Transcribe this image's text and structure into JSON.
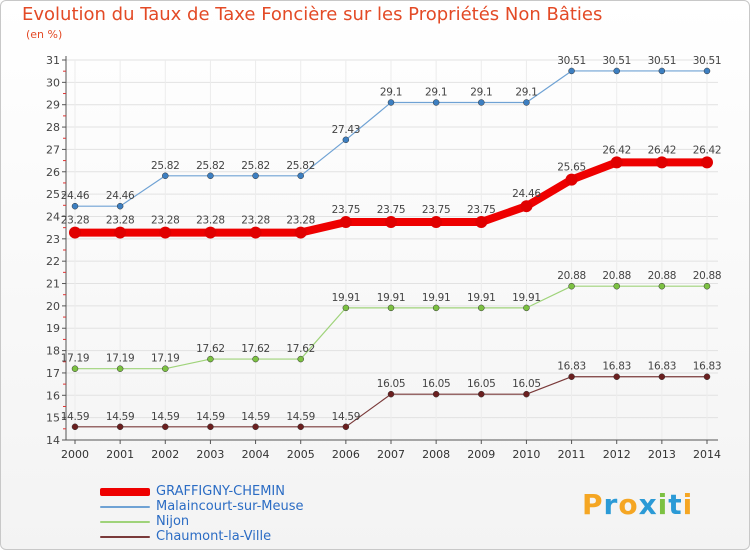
{
  "chart_data": {
    "type": "line",
    "title": "Evolution du Taux de Taxe Foncière sur les Propriétés Non Bâties",
    "ylabel": "(en %)",
    "xlabel": "",
    "categories": [
      "2000",
      "2001",
      "2002",
      "2003",
      "2004",
      "2005",
      "2006",
      "2007",
      "2008",
      "2009",
      "2010",
      "2011",
      "2012",
      "2013",
      "2014"
    ],
    "ylim": [
      14,
      31
    ],
    "yticks": [
      14,
      15,
      16,
      17,
      18,
      19,
      20,
      21,
      22,
      23,
      24,
      25,
      26,
      27,
      28,
      29,
      30,
      31
    ],
    "grid": true,
    "legend_position": "bottom-left",
    "series": [
      {
        "name": "Malaincourt-sur-Meuse",
        "color": "#6fa2d4",
        "marker": "#3d7fc1",
        "width": 1.2,
        "labels": [
          "24.46",
          "24.46",
          "25.82",
          "25.82",
          "25.82",
          "25.82",
          "27.43",
          "29.1",
          "29.1",
          "29.1",
          "29.1",
          "30.51",
          "30.51",
          "30.51",
          "30.51"
        ],
        "values": [
          24.46,
          24.46,
          25.82,
          25.82,
          25.82,
          25.82,
          27.43,
          29.1,
          29.1,
          29.1,
          29.1,
          30.51,
          30.51,
          30.51,
          30.51
        ]
      },
      {
        "name": "Nijon",
        "color": "#9fd37a",
        "marker": "#7cc142",
        "width": 1.2,
        "labels": [
          "17.19",
          "17.19",
          "17.19",
          "17.62",
          "17.62",
          "17.62",
          "19.91",
          "19.91",
          "19.91",
          "19.91",
          "19.91",
          "20.88",
          "20.88",
          "20.88",
          "20.88"
        ],
        "values": [
          17.19,
          17.19,
          17.19,
          17.62,
          17.62,
          17.62,
          19.91,
          19.91,
          19.91,
          19.91,
          19.91,
          20.88,
          20.88,
          20.88,
          20.88
        ]
      },
      {
        "name": "Chaumont-la-Ville",
        "color": "#7a3a3a",
        "marker": "#6b1f1f",
        "width": 1.2,
        "labels": [
          "14.59",
          "14.59",
          "14.59",
          "14.59",
          "14.59",
          "14.59",
          "14.59",
          "16.05",
          "16.05",
          "16.05",
          "16.05",
          "16.83",
          "16.83",
          "16.83",
          "16.83"
        ],
        "values": [
          14.59,
          14.59,
          14.59,
          14.59,
          14.59,
          14.59,
          14.59,
          16.05,
          16.05,
          16.05,
          16.05,
          16.83,
          16.83,
          16.83,
          16.83
        ]
      },
      {
        "name": "GRAFFIGNY-CHEMIN",
        "color": "#ee0000",
        "marker": "#e00000",
        "width": 8,
        "labels": [
          "23.28",
          "23.28",
          "23.28",
          "23.28",
          "23.28",
          "23.28",
          "23.75",
          "23.75",
          "23.75",
          "23.75",
          "24.46",
          "25.65",
          "26.42",
          "26.42",
          "26.42"
        ],
        "values": [
          23.28,
          23.28,
          23.28,
          23.28,
          23.28,
          23.28,
          23.75,
          23.75,
          23.75,
          23.75,
          24.46,
          25.65,
          26.42,
          26.42,
          26.42
        ]
      }
    ]
  },
  "legend": {
    "items": [
      {
        "label": "GRAFFIGNY-CHEMIN",
        "color": "#ee0000"
      },
      {
        "label": "Malaincourt-sur-Meuse",
        "color": "#6fa2d4"
      },
      {
        "label": "Nijon",
        "color": "#9fd37a"
      },
      {
        "label": "Chaumont-la-Ville",
        "color": "#7a3a3a"
      }
    ]
  },
  "logo": {
    "letters": [
      "P",
      "r",
      "o",
      "x",
      "i",
      "t",
      "i"
    ],
    "colors": [
      "#f5a623",
      "#2b9ad6",
      "#f5a623",
      "#2b9ad6",
      "#7cc142",
      "#2b9ad6",
      "#f5a623"
    ]
  }
}
